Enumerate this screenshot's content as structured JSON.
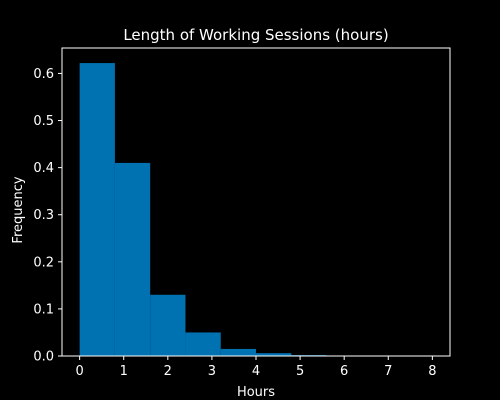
{
  "chart_data": {
    "type": "bar",
    "title": "Length of Working Sessions (hours)",
    "xlabel": "Hours",
    "ylabel": "Frequency",
    "bin_edges": [
      0,
      0.8,
      1.6,
      2.4,
      3.2,
      4.0,
      4.8,
      5.6,
      6.4,
      7.2,
      8.0
    ],
    "values": [
      0.622,
      0.41,
      0.13,
      0.05,
      0.015,
      0.006,
      0.002,
      0.001,
      0.0005,
      0.0005
    ],
    "xlim": [
      -0.4,
      8.4
    ],
    "ylim": [
      0,
      0.654
    ],
    "xticks": [
      0,
      1,
      2,
      3,
      4,
      5,
      6,
      7,
      8
    ],
    "yticks": [
      0.0,
      0.1,
      0.2,
      0.3,
      0.4,
      0.5,
      0.6
    ],
    "xtick_labels": [
      "0",
      "1",
      "2",
      "3",
      "4",
      "5",
      "6",
      "7",
      "8"
    ],
    "ytick_labels": [
      "0.0",
      "0.1",
      "0.2",
      "0.3",
      "0.4",
      "0.5",
      "0.6"
    ],
    "grid": false,
    "bar_color": "#0072b2",
    "background": "#000000",
    "foreground": "#ffffff"
  }
}
